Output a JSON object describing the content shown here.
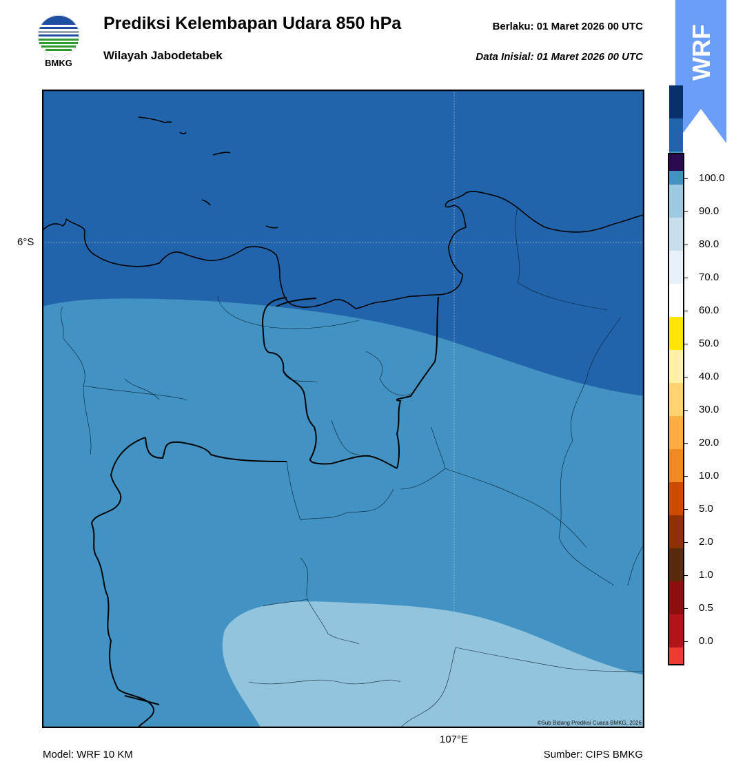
{
  "header": {
    "title": "Prediksi Kelembapan Udara 850 hPa",
    "subtitle": "Wilayah Jabodetabek",
    "valid_text": "Berlaku:  01 Maret 2026 00 UTC",
    "init_text": "Data Inisial:  01 Maret 2026 00 UTC"
  },
  "logo": {
    "label": "BMKG",
    "icon": "bmkg-logo-icon"
  },
  "badge": {
    "text": "WRF",
    "color": "#6a9ef8"
  },
  "map": {
    "lat_label": "6°S",
    "lon_label": "107°E",
    "credit": "©Sub Bidang Prediksi Cuaca BMKG, 2026",
    "fill_colors": {
      "above_80": "#2264ac",
      "70_80": "#4293c4",
      "60_70": "#93c4de"
    }
  },
  "colorbar": {
    "ticks": [
      "0.0",
      "0.5",
      "1.0",
      "2.0",
      "5.0",
      "10.0",
      "20.0",
      "30.0",
      "40.0",
      "50.0",
      "60.0",
      "70.0",
      "80.0",
      "90.0",
      "100.0"
    ],
    "colors": [
      "#ee3b30",
      "#b01318",
      "#8b0f0f",
      "#5a2a0c",
      "#8c3205",
      "#cc4b02",
      "#f08a23",
      "#fdae43",
      "#ffd374",
      "#fff1a8",
      "#ffe500",
      "#ffffff",
      "#e8f1f9",
      "#c9dfee",
      "#9dcae1",
      "#4293c4",
      "#2264ac",
      "#08306b",
      "#2b0a4f"
    ]
  },
  "footer": {
    "model": "Model: WRF 10 KM",
    "source": "Sumber: CIPS BMKG"
  }
}
